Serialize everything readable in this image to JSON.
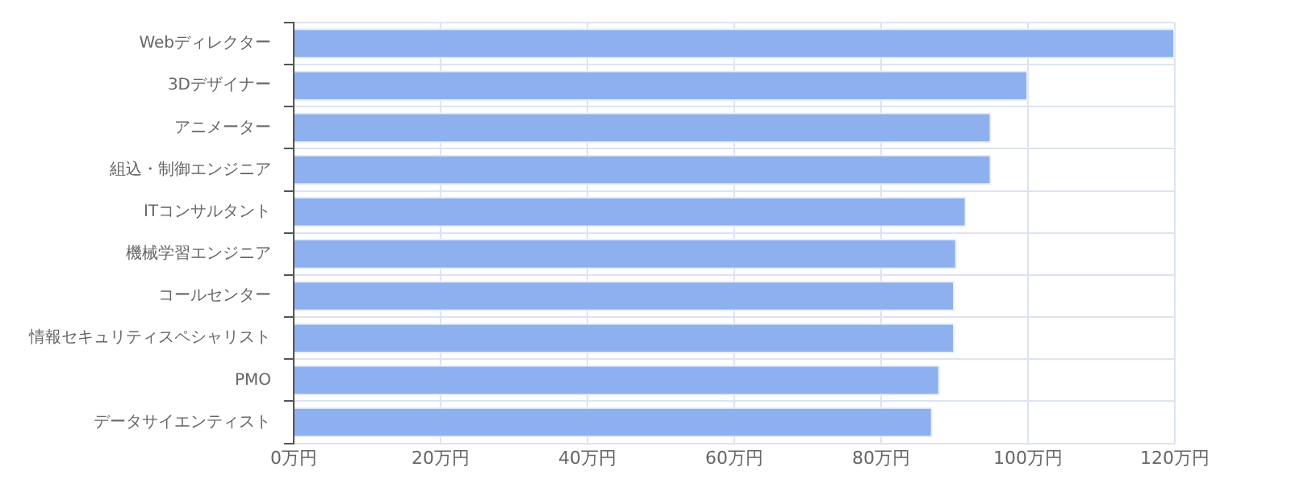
{
  "chart_data": {
    "type": "bar",
    "orientation": "horizontal",
    "categories": [
      "Webディレクター",
      "3Dデザイナー",
      "アニメーター",
      "組込・制御エンジニア",
      "ITコンサルタント",
      "機械学習エンジニア",
      "コールセンター",
      "情報セキュリティスペシャリスト",
      "PMO",
      "データサイエンティスト"
    ],
    "values": [
      120,
      100,
      95,
      95,
      91.6,
      90.3,
      90,
      90,
      88,
      87
    ],
    "color": "#8fb0ee",
    "xlim": [
      0,
      120
    ],
    "xticks": [
      {
        "value": 0,
        "label": "0万円"
      },
      {
        "value": 20,
        "label": "20万円"
      },
      {
        "value": 40,
        "label": "40万円"
      },
      {
        "value": 60,
        "label": "60万円"
      },
      {
        "value": 80,
        "label": "80万円"
      },
      {
        "value": 100,
        "label": "100万円"
      },
      {
        "value": 120,
        "label": "120万円"
      }
    ],
    "grid": true
  }
}
